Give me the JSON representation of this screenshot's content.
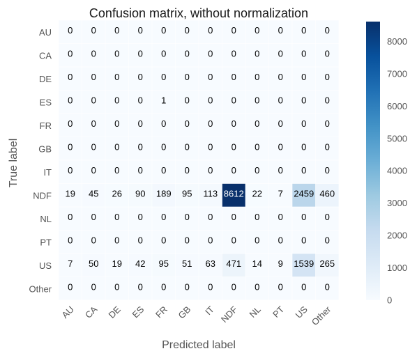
{
  "chart_data": {
    "type": "heatmap",
    "title": "Confusion matrix, without normalization",
    "xlabel": "Predicted label",
    "ylabel": "True label",
    "row_labels": [
      "AU",
      "CA",
      "DE",
      "ES",
      "FR",
      "GB",
      "IT",
      "NDF",
      "NL",
      "PT",
      "US",
      "Other"
    ],
    "col_labels": [
      "AU",
      "CA",
      "DE",
      "ES",
      "FR",
      "GB",
      "IT",
      "NDF",
      "NL",
      "PT",
      "US",
      "Other"
    ],
    "values": [
      [
        0,
        0,
        0,
        0,
        0,
        0,
        0,
        0,
        0,
        0,
        0,
        0
      ],
      [
        0,
        0,
        0,
        0,
        0,
        0,
        0,
        0,
        0,
        0,
        0,
        0
      ],
      [
        0,
        0,
        0,
        0,
        0,
        0,
        0,
        0,
        0,
        0,
        0,
        0
      ],
      [
        0,
        0,
        0,
        0,
        1,
        0,
        0,
        0,
        0,
        0,
        0,
        0
      ],
      [
        0,
        0,
        0,
        0,
        0,
        0,
        0,
        0,
        0,
        0,
        0,
        0
      ],
      [
        0,
        0,
        0,
        0,
        0,
        0,
        0,
        0,
        0,
        0,
        0,
        0
      ],
      [
        0,
        0,
        0,
        0,
        0,
        0,
        0,
        0,
        0,
        0,
        0,
        0
      ],
      [
        19,
        45,
        26,
        90,
        189,
        95,
        113,
        8612,
        22,
        7,
        2459,
        460
      ],
      [
        0,
        0,
        0,
        0,
        0,
        0,
        0,
        0,
        0,
        0,
        0,
        0
      ],
      [
        0,
        0,
        0,
        0,
        0,
        0,
        0,
        0,
        0,
        0,
        0,
        0
      ],
      [
        7,
        50,
        19,
        42,
        95,
        51,
        63,
        471,
        14,
        9,
        1539,
        265
      ],
      [
        0,
        0,
        0,
        0,
        0,
        0,
        0,
        0,
        0,
        0,
        0,
        0
      ]
    ],
    "colorbar": {
      "min": 0,
      "max": 8612,
      "ticks": [
        0,
        1000,
        2000,
        3000,
        4000,
        5000,
        6000,
        7000,
        8000
      ],
      "colormap": "Blues",
      "low_color": "#f7fbff",
      "high_color": "#08306b"
    },
    "grid": true
  }
}
